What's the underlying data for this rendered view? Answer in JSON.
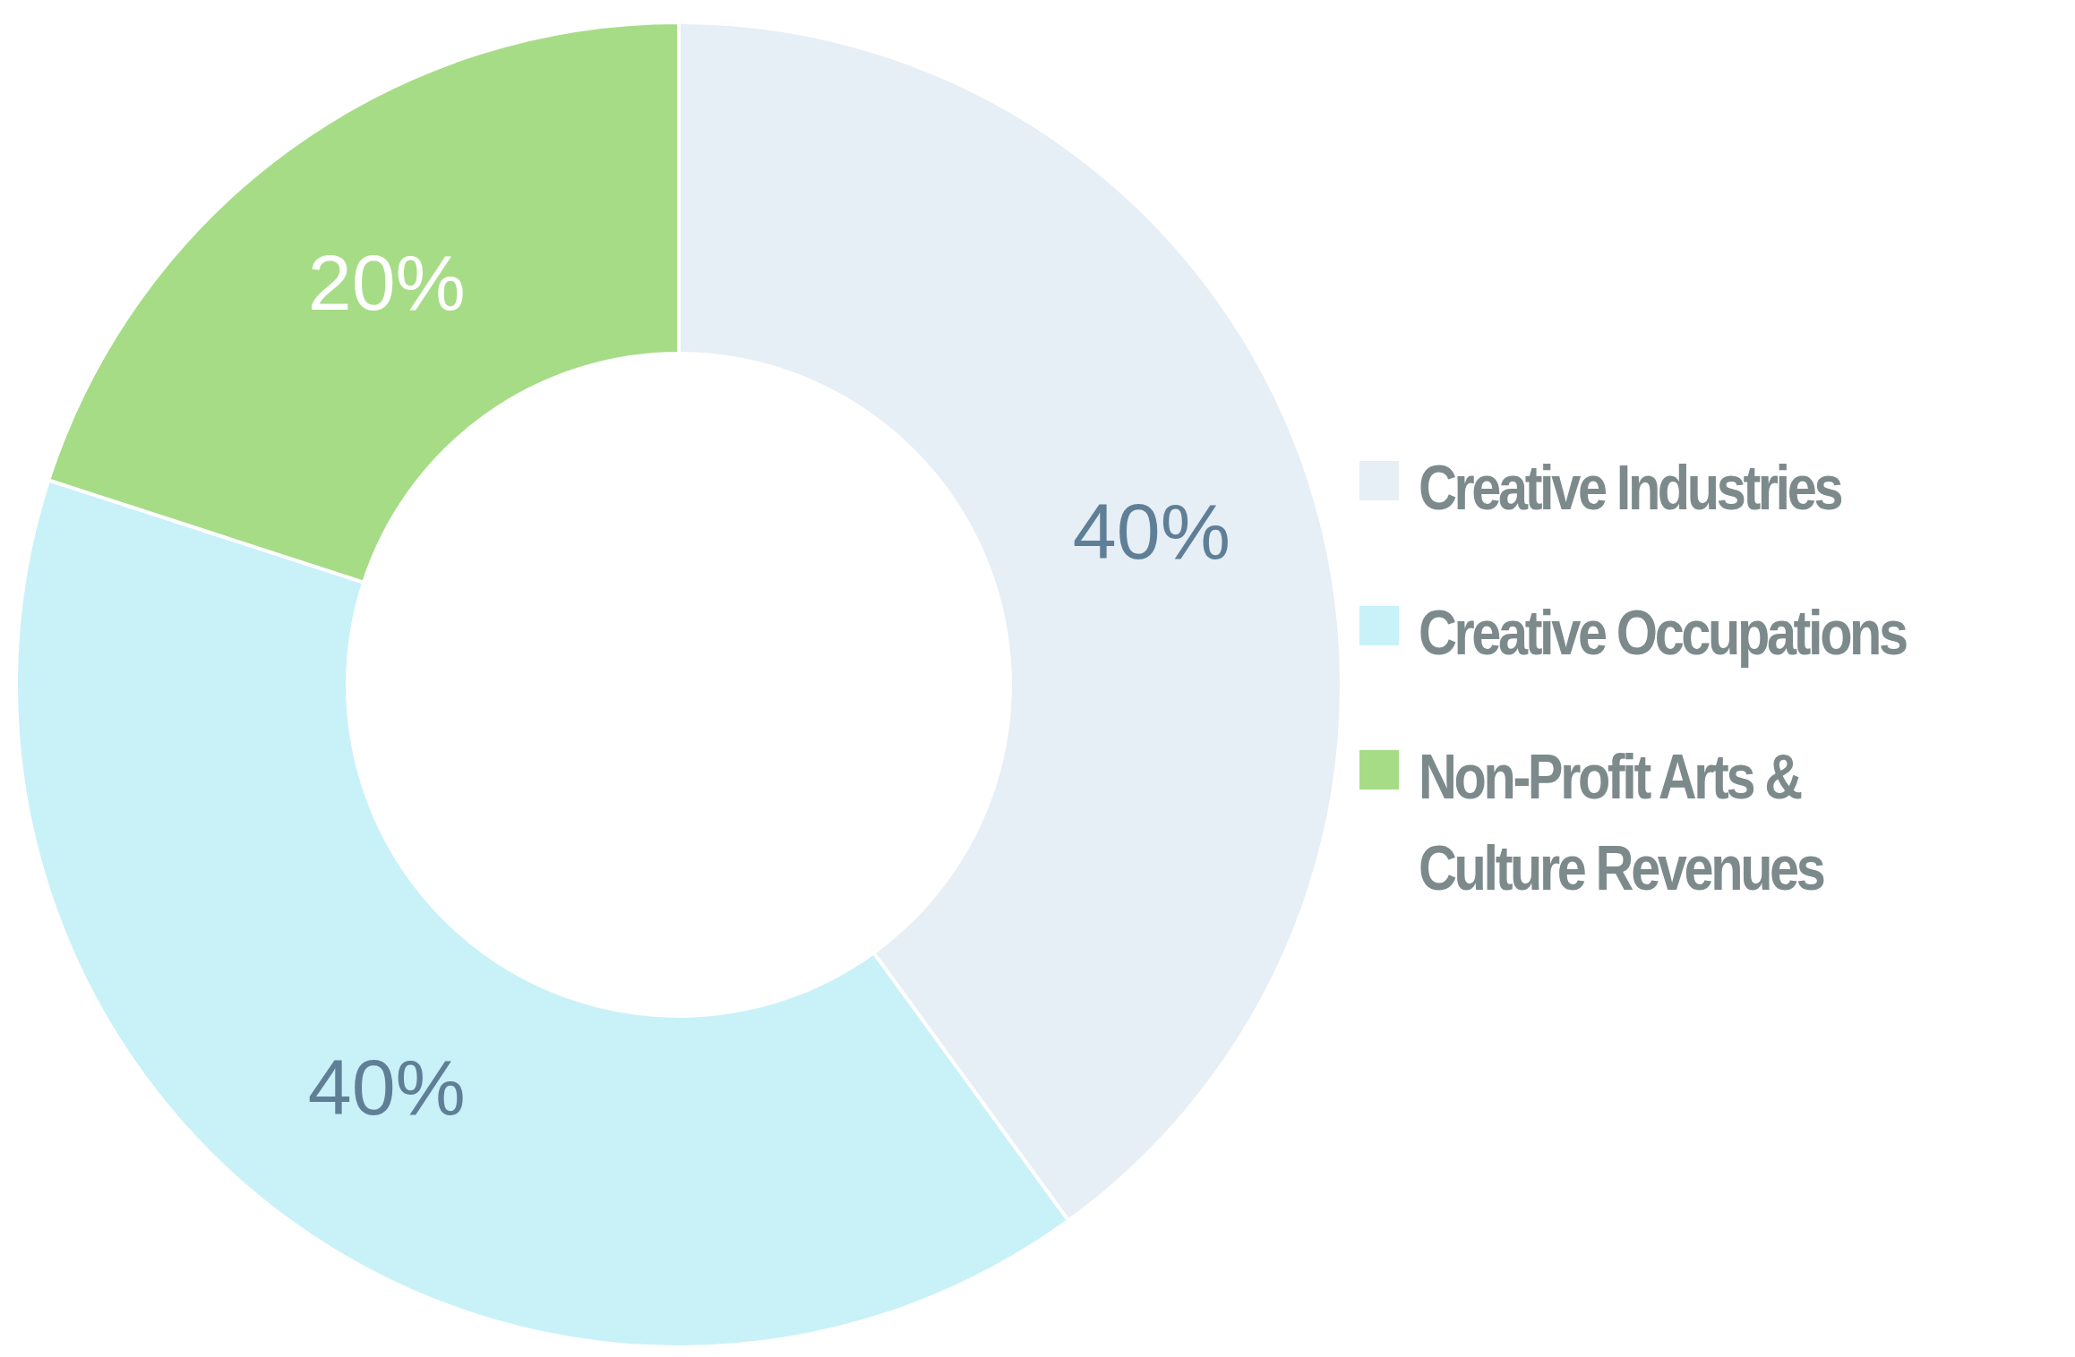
{
  "chart_data": {
    "type": "donut",
    "categories": [
      "Creative Industries",
      "Creative Occupations",
      "Non-Profit Arts & Culture Revenues"
    ],
    "values": [
      40,
      40,
      20
    ],
    "value_labels": [
      "40%",
      "40%",
      "20%"
    ],
    "colors": [
      "#e6eef6",
      "#c9f1f8",
      "#a6dc86"
    ],
    "legend": "right"
  }
}
